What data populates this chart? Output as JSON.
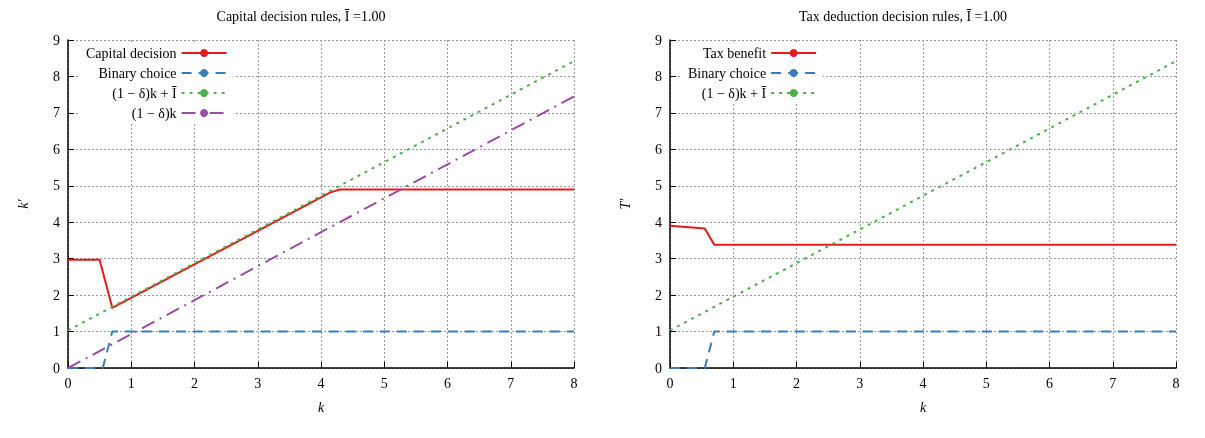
{
  "chart_data": [
    {
      "type": "line",
      "title": "Capital decision rules, Ī =1.00",
      "xlabel": "k",
      "ylabel": "k′",
      "xlim": [
        0,
        8
      ],
      "xticks": [
        0,
        1,
        2,
        3,
        4,
        5,
        6,
        7,
        8
      ],
      "ylim": [
        0,
        9
      ],
      "yticks": [
        0,
        1,
        2,
        3,
        4,
        5,
        6,
        7,
        8,
        9
      ],
      "grid": true,
      "legend": "top left",
      "marker": "none",
      "series": [
        {
          "name": "Capital decision",
          "color": "#e41a1c",
          "line_style": "solid",
          "x": [
            0,
            0.5,
            0.7,
            4.15,
            4.3,
            8
          ],
          "values": [
            2.97,
            2.97,
            1.65,
            4.82,
            4.9,
            4.9
          ]
        },
        {
          "name": "Binary choice",
          "color": "#377eb8",
          "line_style": "dashed",
          "x": [
            0,
            0.55,
            0.7,
            8
          ],
          "values": [
            0,
            0,
            1,
            1
          ]
        },
        {
          "name": "(1 − δ)k + Ī",
          "color": "#4daf4a",
          "line_style": "dotted",
          "x": [
            0,
            8
          ],
          "values": [
            1.03,
            8.42
          ]
        },
        {
          "name": "(1 − δ)k",
          "color": "#984ea3",
          "line_style": "dashdot",
          "x": [
            0,
            8
          ],
          "values": [
            0,
            7.45
          ]
        }
      ]
    },
    {
      "type": "line",
      "title": "Tax deduction decision rules, Ī =1.00",
      "xlabel": "k",
      "ylabel": "T′",
      "xlim": [
        0,
        8
      ],
      "xticks": [
        0,
        1,
        2,
        3,
        4,
        5,
        6,
        7,
        8
      ],
      "ylim": [
        0,
        9
      ],
      "yticks": [
        0,
        1,
        2,
        3,
        4,
        5,
        6,
        7,
        8,
        9
      ],
      "grid": true,
      "legend": "top left",
      "marker": "none",
      "series": [
        {
          "name": "Tax benefit",
          "color": "#e41a1c",
          "line_style": "solid",
          "x": [
            0,
            0.55,
            0.7,
            8
          ],
          "values": [
            3.9,
            3.83,
            3.38,
            3.38
          ]
        },
        {
          "name": "Binary choice",
          "color": "#377eb8",
          "line_style": "dashed",
          "x": [
            0,
            0.55,
            0.7,
            8
          ],
          "values": [
            0,
            0,
            1,
            1
          ]
        },
        {
          "name": "(1 − δ)k + Ī",
          "color": "#4daf4a",
          "line_style": "dotted",
          "x": [
            0,
            8
          ],
          "values": [
            1.03,
            8.42
          ]
        }
      ]
    }
  ]
}
